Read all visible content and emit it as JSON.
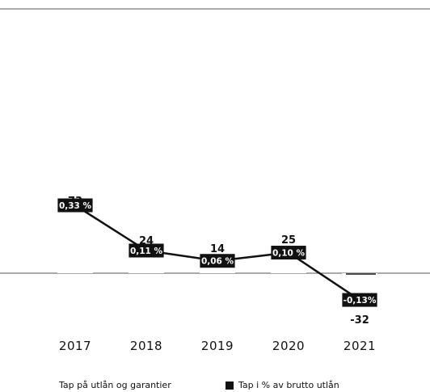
{
  "chart_data": {
    "type": "bar",
    "categories": [
      "2017",
      "2018",
      "2019",
      "2020",
      "2021"
    ],
    "series": [
      {
        "name": "Tap på utlån og garantier",
        "values": [
          73,
          24,
          14,
          25,
          -32
        ],
        "labels": [
          "73",
          "24",
          "14",
          "25",
          "-32"
        ]
      },
      {
        "name": "Tap i % av brutto utlån",
        "type": "line",
        "values": [
          0.33,
          0.11,
          0.06,
          0.1,
          -0.13
        ],
        "labels": [
          "0,33 %",
          "0,11 %",
          "0,06 %",
          "0,10 %",
          "-0,13%"
        ]
      }
    ],
    "colors": {
      "bar": "#ffffff",
      "line": "#111111",
      "label_box": "#111111",
      "label_text": "#ffffff"
    }
  },
  "legend": {
    "loss": "Tap på utlån og garantier",
    "percent": "Tap i % av brutto utlån"
  }
}
